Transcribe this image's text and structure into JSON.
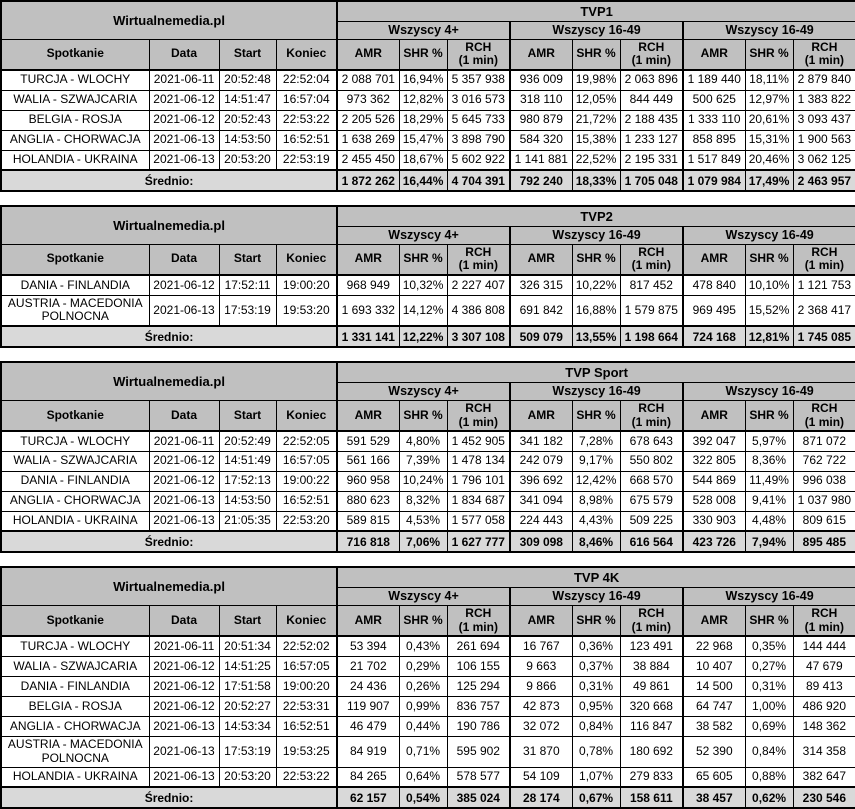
{
  "brand": "Wirtualnemedia.pl",
  "average_label": "Średnio:",
  "column_labels": {
    "spotkanie": "Spotkanie",
    "data": "Data",
    "start": "Start",
    "koniec": "Koniec",
    "amr": "AMR",
    "shr": "SHR %",
    "rch": "RCH\n(1 min)"
  },
  "colors": {
    "header_bg": "#c0c0c0",
    "average_bg": "#d9d9d9",
    "row_bg": "#ffffff",
    "border": "#000000"
  },
  "chart_data": [
    {
      "type": "table",
      "title": "TVP1",
      "groups": [
        "Wszyscy 4+",
        "Wszyscy 16-49",
        "Wszyscy 16-49"
      ],
      "measure_columns": [
        "AMR",
        "SHR %",
        "RCH (1 min)"
      ],
      "rows": [
        {
          "spotkanie": "TURCJA - WLOCHY",
          "data": "2021-06-11",
          "start": "20:52:48",
          "koniec": "22:52:04",
          "values": [
            "2 088 701",
            "16,94%",
            "5 357 938",
            "936 009",
            "19,98%",
            "2 063 896",
            "1 189 440",
            "18,11%",
            "2 879 840"
          ]
        },
        {
          "spotkanie": "WALIA - SZWAJCARIA",
          "data": "2021-06-12",
          "start": "14:51:47",
          "koniec": "16:57:04",
          "values": [
            "973 362",
            "12,82%",
            "3 016 573",
            "318 110",
            "12,05%",
            "844 449",
            "500 625",
            "12,97%",
            "1 383 822"
          ]
        },
        {
          "spotkanie": "BELGIA - ROSJA",
          "data": "2021-06-12",
          "start": "20:52:43",
          "koniec": "22:53:22",
          "values": [
            "2 205 526",
            "18,29%",
            "5 645 733",
            "980 879",
            "21,72%",
            "2 188 435",
            "1 333 110",
            "20,61%",
            "3 093 437"
          ]
        },
        {
          "spotkanie": "ANGLIA - CHORWACJA",
          "data": "2021-06-13",
          "start": "14:53:50",
          "koniec": "16:52:51",
          "values": [
            "1 638 269",
            "15,47%",
            "3 898 790",
            "584 320",
            "15,38%",
            "1 233 127",
            "858 895",
            "15,31%",
            "1 900 563"
          ]
        },
        {
          "spotkanie": "HOLANDIA - UKRAINA",
          "data": "2021-06-13",
          "start": "20:53:20",
          "koniec": "22:53:19",
          "values": [
            "2 455 450",
            "18,67%",
            "5 602 922",
            "1 141 881",
            "22,52%",
            "2 195 331",
            "1 517 849",
            "20,46%",
            "3 062 125"
          ]
        }
      ],
      "average": [
        "1 872 262",
        "16,44%",
        "4 704 391",
        "792 240",
        "18,33%",
        "1 705 048",
        "1 079 984",
        "17,49%",
        "2 463 957"
      ]
    },
    {
      "type": "table",
      "title": "TVP2",
      "groups": [
        "Wszyscy 4+",
        "Wszyscy 16-49",
        "Wszyscy 16-49"
      ],
      "measure_columns": [
        "AMR",
        "SHR %",
        "RCH (1 min)"
      ],
      "rows": [
        {
          "spotkanie": "DANIA - FINLANDIA",
          "data": "2021-06-12",
          "start": "17:52:11",
          "koniec": "19:00:20",
          "values": [
            "968 949",
            "10,32%",
            "2 227 407",
            "326 315",
            "10,22%",
            "817 452",
            "478 840",
            "10,10%",
            "1 121 753"
          ]
        },
        {
          "spotkanie": "AUSTRIA - MACEDONIA POLNOCNA",
          "data": "2021-06-13",
          "start": "17:53:19",
          "koniec": "19:53:20",
          "values": [
            "1 693 332",
            "14,12%",
            "4 386 808",
            "691 842",
            "16,88%",
            "1 579 875",
            "969 495",
            "15,52%",
            "2 368 417"
          ]
        }
      ],
      "average": [
        "1 331 141",
        "12,22%",
        "3 307 108",
        "509 079",
        "13,55%",
        "1 198 664",
        "724 168",
        "12,81%",
        "1 745 085"
      ]
    },
    {
      "type": "table",
      "title": "TVP Sport",
      "groups": [
        "Wszyscy 4+",
        "Wszyscy 16-49",
        "Wszyscy 16-49"
      ],
      "measure_columns": [
        "AMR",
        "SHR %",
        "RCH (1 min)"
      ],
      "rows": [
        {
          "spotkanie": "TURCJA - WLOCHY",
          "data": "2021-06-11",
          "start": "20:52:49",
          "koniec": "22:52:05",
          "values": [
            "591 529",
            "4,80%",
            "1 452 905",
            "341 182",
            "7,28%",
            "678 643",
            "392 047",
            "5,97%",
            "871 072"
          ]
        },
        {
          "spotkanie": "WALIA - SZWAJCARIA",
          "data": "2021-06-12",
          "start": "14:51:49",
          "koniec": "16:57:05",
          "values": [
            "561 166",
            "7,39%",
            "1 478 134",
            "242 079",
            "9,17%",
            "550 802",
            "322 805",
            "8,36%",
            "762 722"
          ]
        },
        {
          "spotkanie": "DANIA - FINLANDIA",
          "data": "2021-06-12",
          "start": "17:52:13",
          "koniec": "19:00:22",
          "values": [
            "960 958",
            "10,24%",
            "1 796 101",
            "396 692",
            "12,42%",
            "668 570",
            "544 869",
            "11,49%",
            "996 038"
          ]
        },
        {
          "spotkanie": "ANGLIA - CHORWACJA",
          "data": "2021-06-13",
          "start": "14:53:50",
          "koniec": "16:52:51",
          "values": [
            "880 623",
            "8,32%",
            "1 834 687",
            "341 094",
            "8,98%",
            "675 579",
            "528 008",
            "9,41%",
            "1 037 980"
          ]
        },
        {
          "spotkanie": "HOLANDIA - UKRAINA",
          "data": "2021-06-13",
          "start": "21:05:35",
          "koniec": "22:53:20",
          "values": [
            "589 815",
            "4,53%",
            "1 577 058",
            "224 443",
            "4,43%",
            "509 225",
            "330 903",
            "4,48%",
            "809 615"
          ]
        }
      ],
      "average": [
        "716 818",
        "7,06%",
        "1 627 777",
        "309 098",
        "8,46%",
        "616 564",
        "423 726",
        "7,94%",
        "895 485"
      ]
    },
    {
      "type": "table",
      "title": "TVP 4K",
      "groups": [
        "Wszyscy 4+",
        "Wszyscy 16-49",
        "Wszyscy 16-49"
      ],
      "measure_columns": [
        "AMR",
        "SHR %",
        "RCH (1 min)"
      ],
      "rows": [
        {
          "spotkanie": "TURCJA - WLOCHY",
          "data": "2021-06-11",
          "start": "20:51:34",
          "koniec": "22:52:02",
          "values": [
            "53 394",
            "0,43%",
            "261 694",
            "16 767",
            "0,36%",
            "123 491",
            "22 968",
            "0,35%",
            "144 444"
          ]
        },
        {
          "spotkanie": "WALIA - SZWAJCARIA",
          "data": "2021-06-12",
          "start": "14:51:25",
          "koniec": "16:57:05",
          "values": [
            "21 702",
            "0,29%",
            "106 155",
            "9 663",
            "0,37%",
            "38 884",
            "10 407",
            "0,27%",
            "47 679"
          ]
        },
        {
          "spotkanie": "DANIA - FINLANDIA",
          "data": "2021-06-12",
          "start": "17:51:58",
          "koniec": "19:00:20",
          "values": [
            "24 436",
            "0,26%",
            "125 294",
            "9 866",
            "0,31%",
            "49 861",
            "14 500",
            "0,31%",
            "89 413"
          ]
        },
        {
          "spotkanie": "BELGIA - ROSJA",
          "data": "2021-06-12",
          "start": "20:52:27",
          "koniec": "22:53:31",
          "values": [
            "119 907",
            "0,99%",
            "836 757",
            "42 873",
            "0,95%",
            "320 668",
            "64 747",
            "1,00%",
            "486 920"
          ]
        },
        {
          "spotkanie": "ANGLIA - CHORWACJA",
          "data": "2021-06-13",
          "start": "14:53:34",
          "koniec": "16:52:51",
          "values": [
            "46 479",
            "0,44%",
            "190 786",
            "32 072",
            "0,84%",
            "116 847",
            "38 582",
            "0,69%",
            "148 362"
          ]
        },
        {
          "spotkanie": "AUSTRIA - MACEDONIA POLNOCNA",
          "data": "2021-06-13",
          "start": "17:53:19",
          "koniec": "19:53:25",
          "values": [
            "84 919",
            "0,71%",
            "595 902",
            "31 870",
            "0,78%",
            "180 692",
            "52 390",
            "0,84%",
            "314 358"
          ]
        },
        {
          "spotkanie": "HOLANDIA - UKRAINA",
          "data": "2021-06-13",
          "start": "20:53:20",
          "koniec": "22:53:22",
          "values": [
            "84 265",
            "0,64%",
            "578 577",
            "54 109",
            "1,07%",
            "279 833",
            "65 605",
            "0,88%",
            "382 647"
          ]
        }
      ],
      "average": [
        "62 157",
        "0,54%",
        "385 024",
        "28 174",
        "0,67%",
        "158 611",
        "38 457",
        "0,62%",
        "230 546"
      ]
    }
  ]
}
